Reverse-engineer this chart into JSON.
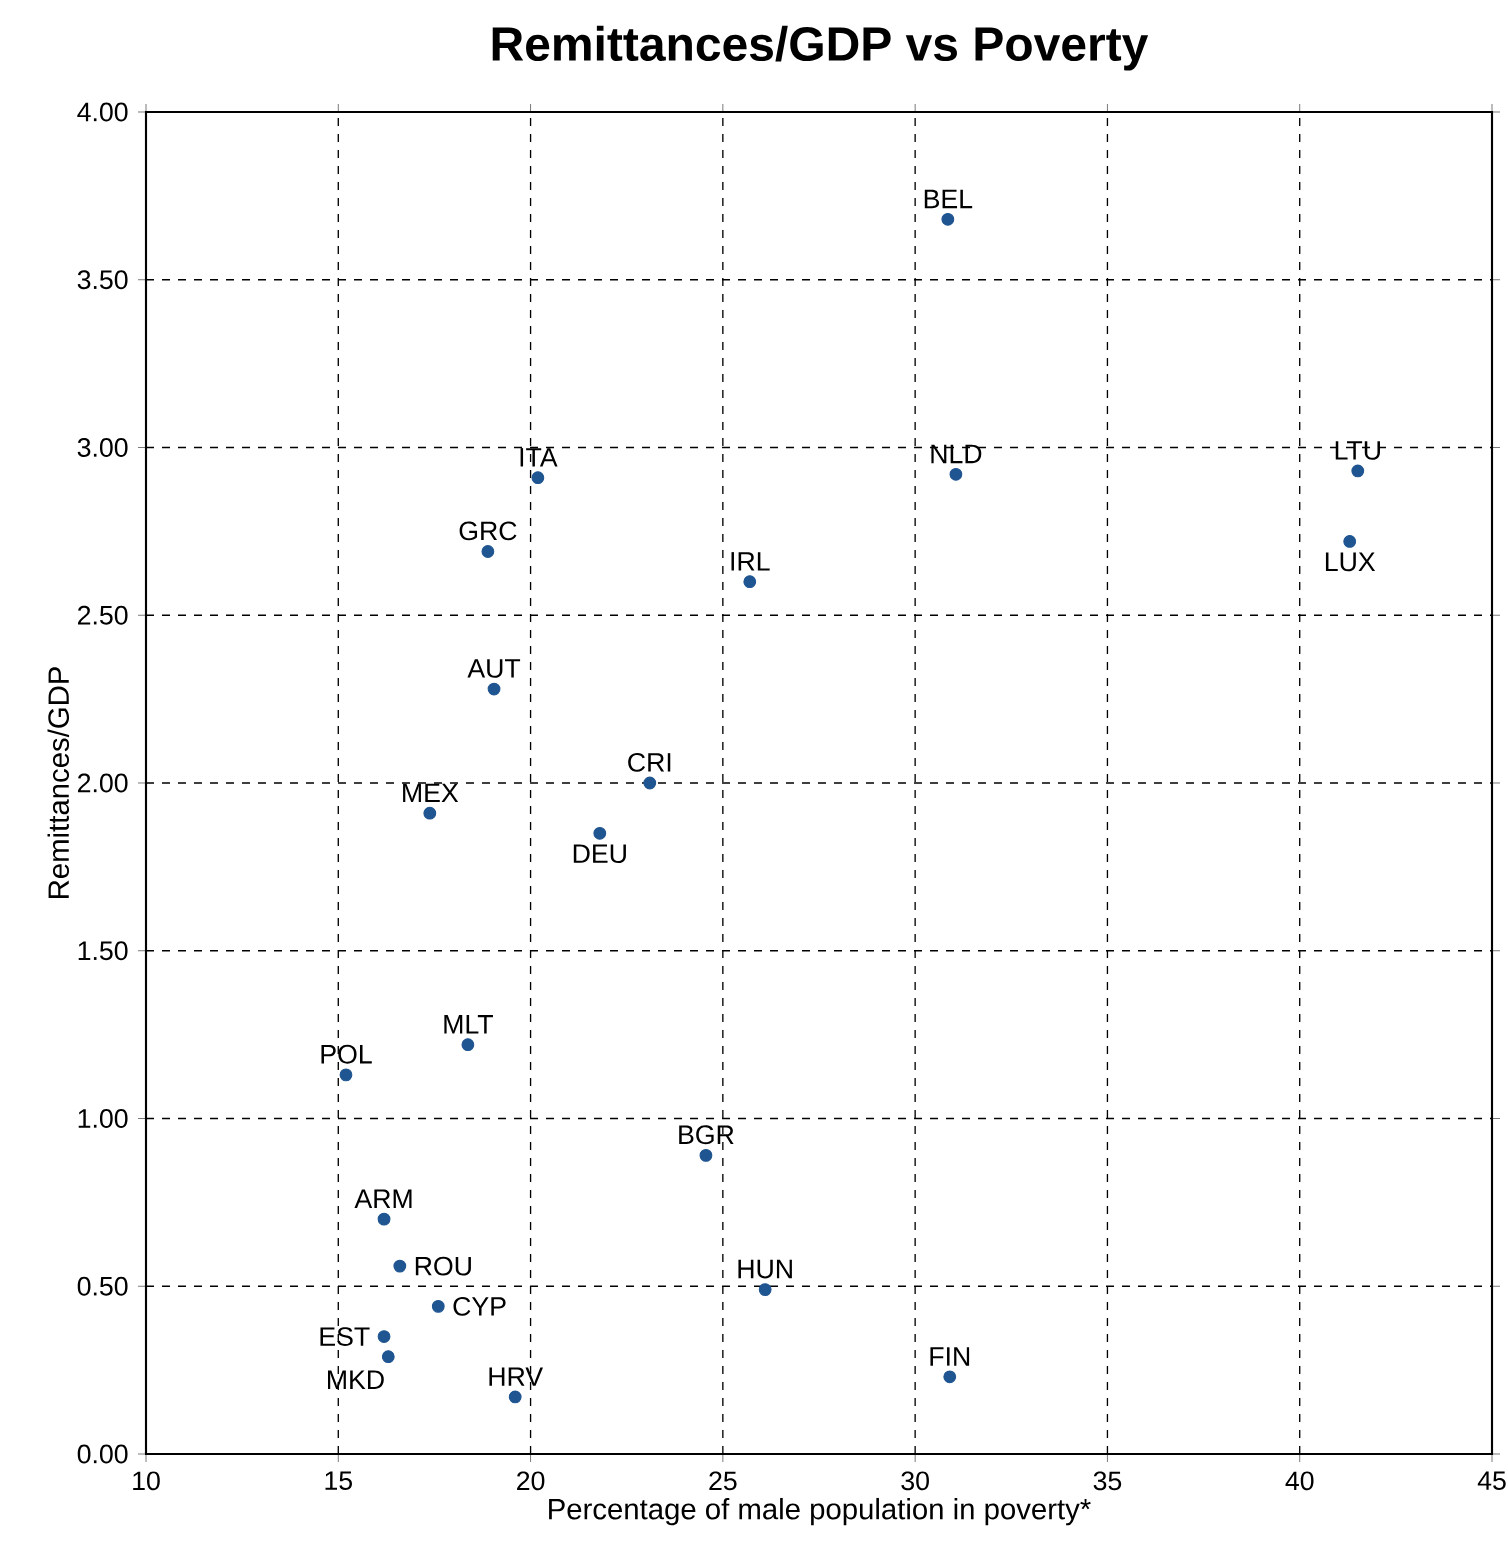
{
  "chart_data": {
    "type": "scatter",
    "title": "Remittances/GDP vs Poverty",
    "xlabel": "Percentage of male population in poverty*",
    "ylabel": "Remittances/GDP",
    "xlim": [
      10,
      45
    ],
    "xticks": [
      10,
      15,
      20,
      25,
      30,
      35,
      40,
      45
    ],
    "ylim": [
      0,
      4
    ],
    "yticks": [
      {
        "value": 0,
        "label": "0.00"
      },
      {
        "value": 0.5,
        "label": "0.50"
      },
      {
        "value": 1,
        "label": "1.00"
      },
      {
        "value": 1.5,
        "label": "1.50"
      },
      {
        "value": 2,
        "label": "2.00"
      },
      {
        "value": 2.5,
        "label": "2.50"
      },
      {
        "value": 3,
        "label": "3.00"
      },
      {
        "value": 3.5,
        "label": "3.50"
      },
      {
        "value": 4,
        "label": "4.00"
      }
    ],
    "grid": true,
    "marker": "circle",
    "series": [
      {
        "color": "#1f5591",
        "x": [
          30.85,
          31.06,
          41.51,
          41.3,
          20.19,
          18.89,
          25.7,
          19.05,
          23.1,
          17.38,
          21.8,
          15.2,
          18.37,
          24.56,
          16.19,
          16.6,
          17.6,
          26.1,
          16.19,
          16.3,
          19.6,
          30.9
        ],
        "values": [
          3.68,
          2.92,
          2.93,
          2.72,
          2.91,
          2.69,
          2.6,
          2.28,
          2.0,
          1.91,
          1.85,
          1.13,
          1.22,
          0.89,
          0.7,
          0.56,
          0.44,
          0.49,
          0.35,
          0.29,
          0.17,
          0.23
        ]
      }
    ],
    "annotations": [
      {
        "text": "BEL",
        "x": 30.85,
        "y": 3.68
      },
      {
        "text": "NLD",
        "x": 31.06,
        "y": 2.92
      },
      {
        "text": "LTU",
        "x": 41.51,
        "y": 2.93
      },
      {
        "text": "LUX",
        "x": 41.3,
        "y": 2.72
      },
      {
        "text": "ITA",
        "x": 20.19,
        "y": 2.91
      },
      {
        "text": "GRC",
        "x": 18.89,
        "y": 2.69
      },
      {
        "text": "IRL",
        "x": 25.7,
        "y": 2.6
      },
      {
        "text": "AUT",
        "x": 19.05,
        "y": 2.28
      },
      {
        "text": "CRI",
        "x": 23.1,
        "y": 2.0
      },
      {
        "text": "MEX",
        "x": 17.38,
        "y": 1.91
      },
      {
        "text": "DEU",
        "x": 21.8,
        "y": 1.85
      },
      {
        "text": "POL",
        "x": 15.2,
        "y": 1.13
      },
      {
        "text": "MLT",
        "x": 18.37,
        "y": 1.22
      },
      {
        "text": "BGR",
        "x": 24.56,
        "y": 0.89
      },
      {
        "text": "ARM",
        "x": 16.19,
        "y": 0.7
      },
      {
        "text": "ROU",
        "x": 16.6,
        "y": 0.56
      },
      {
        "text": "CYP",
        "x": 17.6,
        "y": 0.44
      },
      {
        "text": "HUN",
        "x": 26.1,
        "y": 0.49
      },
      {
        "text": "EST",
        "x": 16.19,
        "y": 0.35
      },
      {
        "text": "MKD",
        "x": 16.3,
        "y": 0.29
      },
      {
        "text": "HRV",
        "x": 19.6,
        "y": 0.17
      },
      {
        "text": "FIN",
        "x": 30.9,
        "y": 0.23
      }
    ]
  }
}
